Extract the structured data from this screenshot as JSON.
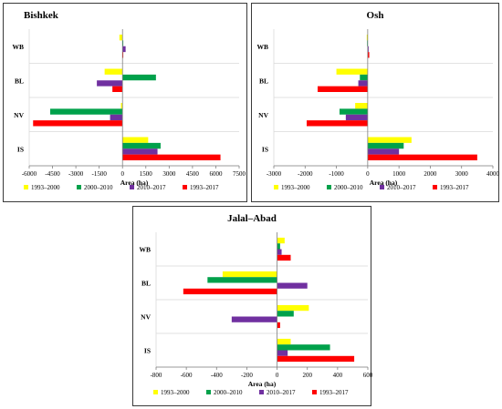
{
  "colors": {
    "1993–2000": "#ffff00",
    "2000–2010": "#00a14b",
    "2010–2017": "#7030a0",
    "1993–2017": "#ff0000"
  },
  "chart_data": [
    {
      "type": "bar",
      "orientation": "horizontal",
      "title": "Bishkek",
      "xlabel": "Area (ha)",
      "categories": [
        "WB",
        "BL",
        "NV",
        "IS"
      ],
      "xlim": [
        -6000,
        7500
      ],
      "xticks": [
        -6000,
        -4500,
        -3000,
        -1500,
        0,
        1500,
        3000,
        4500,
        6000,
        7500
      ],
      "series": [
        {
          "name": "1993–2000",
          "values": [
            -200,
            -1150,
            -100,
            1650
          ]
        },
        {
          "name": "2000–2010",
          "values": [
            50,
            2150,
            -4650,
            2450
          ]
        },
        {
          "name": "2010–2017",
          "values": [
            200,
            -1650,
            -800,
            2250
          ]
        },
        {
          "name": "1993–2017",
          "values": [
            50,
            -650,
            -5750,
            6300
          ]
        }
      ]
    },
    {
      "type": "bar",
      "orientation": "horizontal",
      "title": "Osh",
      "xlabel": "Area (ha)",
      "categories": [
        "WB",
        "BL",
        "NV",
        "IS"
      ],
      "xlim": [
        -3000,
        4000
      ],
      "xticks": [
        -3000,
        -2000,
        -1000,
        0,
        1000,
        2000,
        3000,
        4000
      ],
      "series": [
        {
          "name": "1993–2000",
          "values": [
            -30,
            -1000,
            -400,
            1400
          ]
        },
        {
          "name": "2000–2010",
          "values": [
            -20,
            -250,
            -900,
            1150
          ]
        },
        {
          "name": "2010–2017",
          "values": [
            30,
            -300,
            -700,
            1000
          ]
        },
        {
          "name": "1993–2017",
          "values": [
            50,
            -1600,
            -1950,
            3500
          ]
        }
      ]
    },
    {
      "type": "bar",
      "orientation": "horizontal",
      "title": "Jalal–Abad",
      "xlabel": "Area (ha)",
      "categories": [
        "WB",
        "BL",
        "NV",
        "IS"
      ],
      "xlim": [
        -800,
        600
      ],
      "xticks": [
        -800,
        -600,
        -400,
        -200,
        0,
        200,
        400,
        600
      ],
      "series": [
        {
          "name": "1993–2000",
          "values": [
            50,
            -360,
            210,
            90
          ]
        },
        {
          "name": "2000–2010",
          "values": [
            20,
            -460,
            110,
            350
          ]
        },
        {
          "name": "2010–2017",
          "values": [
            30,
            200,
            -300,
            70
          ]
        },
        {
          "name": "1993–2017",
          "values": [
            90,
            -620,
            20,
            510
          ]
        }
      ]
    }
  ]
}
